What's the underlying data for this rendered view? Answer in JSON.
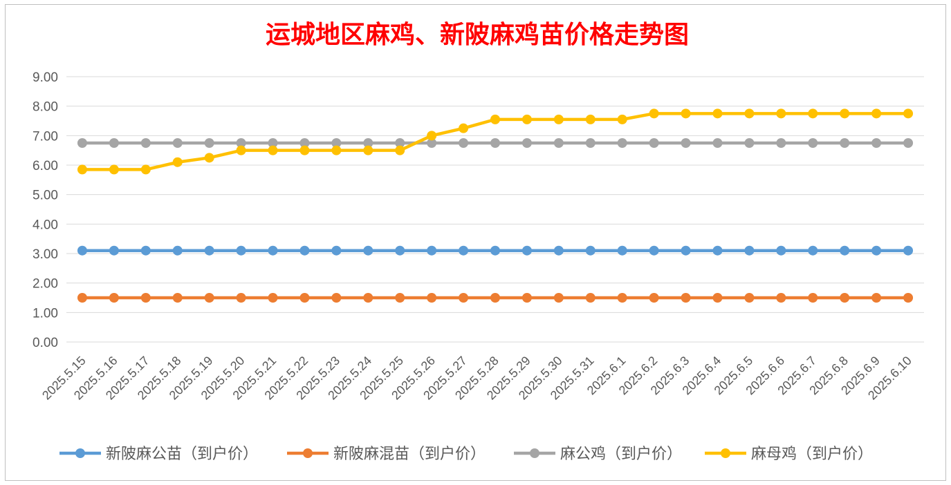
{
  "chart_data": {
    "type": "line",
    "title": "运城地区麻鸡、新陂麻鸡苗价格走势图",
    "title_color": "#ff0000",
    "xlabel": "",
    "ylabel": "",
    "ylim": [
      0,
      9
    ],
    "y_ticks": [
      "0.00",
      "1.00",
      "2.00",
      "3.00",
      "4.00",
      "5.00",
      "6.00",
      "7.00",
      "8.00",
      "9.00"
    ],
    "grid": true,
    "legend_position": "bottom",
    "categories": [
      "2025.5.15",
      "2025.5.16",
      "2025.5.17",
      "2025.5.18",
      "2025.5.19",
      "2025.5.20",
      "2025.5.21",
      "2025.5.22",
      "2025.5.23",
      "2025.5.24",
      "2025.5.25",
      "2025.5.26",
      "2025.5.27",
      "2025.5.28",
      "2025.5.29",
      "2025.5.30",
      "2025.5.31",
      "2025.6.1",
      "2025.6.2",
      "2025.6.3",
      "2025.6.4",
      "2025.6.5",
      "2025.6.6",
      "2025.6.7",
      "2025.6.8",
      "2025.6.9",
      "2025.6.10"
    ],
    "series": [
      {
        "name": "新陂麻公苗（到户价）",
        "color": "#5b9bd5",
        "values": [
          3.1,
          3.1,
          3.1,
          3.1,
          3.1,
          3.1,
          3.1,
          3.1,
          3.1,
          3.1,
          3.1,
          3.1,
          3.1,
          3.1,
          3.1,
          3.1,
          3.1,
          3.1,
          3.1,
          3.1,
          3.1,
          3.1,
          3.1,
          3.1,
          3.1,
          3.1,
          3.1
        ]
      },
      {
        "name": "新陂麻混苗（到户价）",
        "color": "#ed7d31",
        "values": [
          1.5,
          1.5,
          1.5,
          1.5,
          1.5,
          1.5,
          1.5,
          1.5,
          1.5,
          1.5,
          1.5,
          1.5,
          1.5,
          1.5,
          1.5,
          1.5,
          1.5,
          1.5,
          1.5,
          1.5,
          1.5,
          1.5,
          1.5,
          1.5,
          1.5,
          1.5,
          1.5
        ]
      },
      {
        "name": "麻公鸡（到户价）",
        "color": "#a5a5a5",
        "values": [
          6.75,
          6.75,
          6.75,
          6.75,
          6.75,
          6.75,
          6.75,
          6.75,
          6.75,
          6.75,
          6.75,
          6.75,
          6.75,
          6.75,
          6.75,
          6.75,
          6.75,
          6.75,
          6.75,
          6.75,
          6.75,
          6.75,
          6.75,
          6.75,
          6.75,
          6.75,
          6.75
        ]
      },
      {
        "name": "麻母鸡（到户价）",
        "color": "#ffc000",
        "values": [
          5.85,
          5.85,
          5.85,
          6.1,
          6.25,
          6.5,
          6.5,
          6.5,
          6.5,
          6.5,
          6.5,
          7.0,
          7.25,
          7.55,
          7.55,
          7.55,
          7.55,
          7.55,
          7.75,
          7.75,
          7.75,
          7.75,
          7.75,
          7.75,
          7.75,
          7.75,
          7.75
        ]
      }
    ]
  }
}
